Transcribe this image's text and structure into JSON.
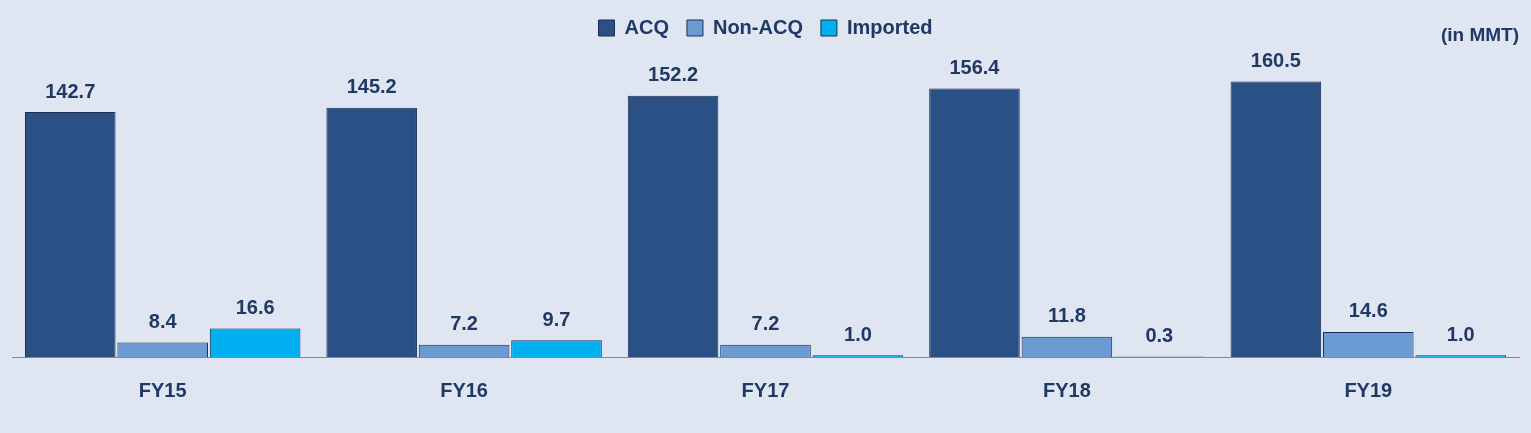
{
  "chart_data": {
    "type": "bar",
    "categories": [
      "FY15",
      "FY16",
      "FY17",
      "FY18",
      "FY19"
    ],
    "series": [
      {
        "name": "ACQ",
        "color": "#2b5085",
        "values": [
          142.7,
          145.2,
          152.2,
          156.4,
          160.5
        ],
        "value_labels": [
          "142.7",
          "145.2",
          "152.2",
          "156.4",
          "160.5"
        ]
      },
      {
        "name": "Non-ACQ",
        "color": "#6b9bd2",
        "values": [
          8.4,
          7.2,
          7.2,
          11.8,
          14.6
        ],
        "value_labels": [
          "8.4",
          "7.2",
          "7.2",
          "11.8",
          "14.6"
        ]
      },
      {
        "name": "Imported",
        "color": "#00b0f0",
        "values": [
          16.6,
          9.7,
          1.0,
          0.3,
          1.0
        ],
        "value_labels": [
          "16.6",
          "9.7",
          "1.0",
          "0.3",
          "1.0"
        ]
      }
    ],
    "legend": "top",
    "grid": false,
    "annotations": [
      "(in MMT)"
    ]
  }
}
